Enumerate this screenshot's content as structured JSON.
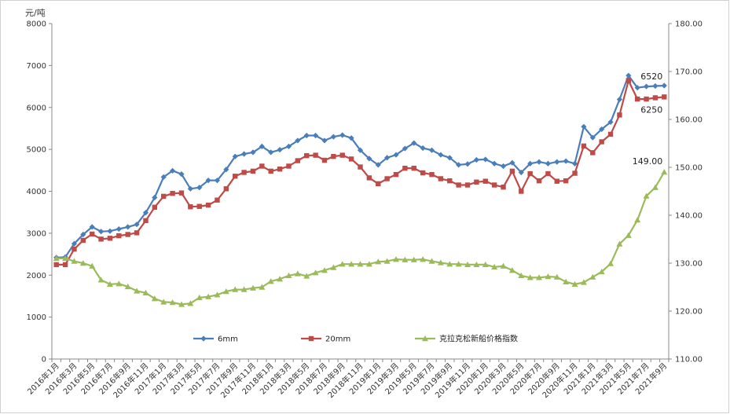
{
  "chart_data": {
    "type": "line",
    "y_unit_label": "元/吨",
    "ylim_left": [
      0,
      8000
    ],
    "ylim_right": [
      110,
      180
    ],
    "yticks_left": [
      "0",
      "1000",
      "2000",
      "3000",
      "4000",
      "5000",
      "6000",
      "7000",
      "8000"
    ],
    "yticks_right": [
      "110.00",
      "120.00",
      "130.00",
      "140.00",
      "150.00",
      "160.00",
      "170.00",
      "180.00"
    ],
    "grid": false,
    "legend_position": "bottom",
    "x": [
      "2016年1月",
      "2016年2月",
      "2016年3月",
      "2016年4月",
      "2016年5月",
      "2016年6月",
      "2016年7月",
      "2016年8月",
      "2016年9月",
      "2016年10月",
      "2016年11月",
      "2016年12月",
      "2017年1月",
      "2017年2月",
      "2017年3月",
      "2017年4月",
      "2017年5月",
      "2017年6月",
      "2017年7月",
      "2017年8月",
      "2017年9月",
      "2017年10月",
      "2017年11月",
      "2017年12月",
      "2018年1月",
      "2018年2月",
      "2018年3月",
      "2018年4月",
      "2018年5月",
      "2018年6月",
      "2018年7月",
      "2018年8月",
      "2018年9月",
      "2018年10月",
      "2018年11月",
      "2018年12月",
      "2019年1月",
      "2019年2月",
      "2019年3月",
      "2019年4月",
      "2019年5月",
      "2019年6月",
      "2019年7月",
      "2019年8月",
      "2019年9月",
      "2019年10月",
      "2019年11月",
      "2019年12月",
      "2020年1月",
      "2020年2月",
      "2020年3月",
      "2020年4月",
      "2020年5月",
      "2020年6月",
      "2020年7月",
      "2020年8月",
      "2020年9月",
      "2020年10月",
      "2020年11月",
      "2020年12月",
      "2021年1月",
      "2021年2月",
      "2021年3月",
      "2021年4月",
      "2021年5月",
      "2021年6月",
      "2021年7月",
      "2021年8月",
      "2021年9月"
    ],
    "xticks": [
      "2016年1月",
      "2016年3月",
      "2016年5月",
      "2016年7月",
      "2016年9月",
      "2016年11月",
      "2017年1月",
      "2017年3月",
      "2017年5月",
      "2017年7月",
      "2017年9月",
      "2017年11月",
      "2018年1月",
      "2018年3月",
      "2018年5月",
      "2018年7月",
      "2018年9月",
      "2018年11月",
      "2019年1月",
      "2019年3月",
      "2019年5月",
      "2019年7月",
      "2019年9月",
      "2019年11月",
      "2020年1月",
      "2020年3月",
      "2020年5月",
      "2020年7月",
      "2020年9月",
      "2020年11月",
      "2021年1月",
      "2021年3月",
      "2021年5月",
      "2021年7月",
      "2021年9月"
    ],
    "series": [
      {
        "name": "6mm",
        "axis": "left",
        "color": "#4a7ebb",
        "marker": "diamond",
        "values": [
          2420,
          2430,
          2750,
          2970,
          3150,
          3040,
          3050,
          3100,
          3150,
          3210,
          3490,
          3850,
          4340,
          4490,
          4410,
          4060,
          4090,
          4260,
          4260,
          4520,
          4830,
          4890,
          4930,
          5070,
          4930,
          4990,
          5070,
          5210,
          5330,
          5330,
          5210,
          5300,
          5340,
          5270,
          4980,
          4780,
          4630,
          4800,
          4870,
          5020,
          5150,
          5030,
          4980,
          4870,
          4800,
          4630,
          4650,
          4750,
          4760,
          4660,
          4600,
          4680,
          4450,
          4660,
          4700,
          4660,
          4700,
          4720,
          4660,
          5540,
          5280,
          5480,
          5650,
          6190,
          6760,
          6470,
          6500,
          6510,
          6520
        ]
      },
      {
        "name": "20mm",
        "axis": "left",
        "color": "#be4b48",
        "marker": "square",
        "values": [
          2250,
          2250,
          2620,
          2830,
          2980,
          2860,
          2880,
          2940,
          2970,
          3010,
          3300,
          3620,
          3880,
          3950,
          3960,
          3630,
          3640,
          3670,
          3790,
          4060,
          4360,
          4450,
          4480,
          4600,
          4480,
          4530,
          4600,
          4730,
          4850,
          4860,
          4740,
          4830,
          4860,
          4770,
          4580,
          4320,
          4180,
          4300,
          4400,
          4550,
          4550,
          4440,
          4400,
          4300,
          4250,
          4150,
          4150,
          4220,
          4240,
          4150,
          4100,
          4480,
          4000,
          4420,
          4250,
          4420,
          4240,
          4250,
          4430,
          5080,
          4920,
          5180,
          5360,
          5820,
          6640,
          6200,
          6200,
          6230,
          6250
        ]
      },
      {
        "name": "克拉克松新船价格指数",
        "axis": "right",
        "color": "#9bbb59",
        "marker": "triangle",
        "values": [
          131.0,
          131.0,
          130.4,
          130.0,
          129.4,
          126.5,
          125.6,
          125.7,
          125.1,
          124.2,
          123.8,
          122.6,
          121.9,
          121.8,
          121.4,
          121.6,
          122.8,
          123.0,
          123.4,
          124.1,
          124.5,
          124.5,
          124.8,
          125.0,
          126.2,
          126.7,
          127.4,
          127.8,
          127.3,
          128.0,
          128.5,
          129.1,
          129.8,
          129.8,
          129.8,
          129.8,
          130.3,
          130.4,
          130.8,
          130.7,
          130.7,
          130.8,
          130.4,
          130.1,
          129.8,
          129.8,
          129.7,
          129.7,
          129.7,
          129.2,
          129.4,
          128.5,
          127.4,
          127.0,
          127.0,
          127.2,
          127.1,
          126.1,
          125.6,
          126.0,
          127.1,
          128.2,
          129.9,
          134.0,
          135.8,
          139.0,
          144.0,
          145.8,
          149.0
        ]
      }
    ],
    "data_labels": [
      {
        "series": "6mm",
        "text": "6520"
      },
      {
        "series": "20mm",
        "text": "6250"
      },
      {
        "series": "克拉克松新船价格指数",
        "text": "149.00"
      }
    ]
  }
}
